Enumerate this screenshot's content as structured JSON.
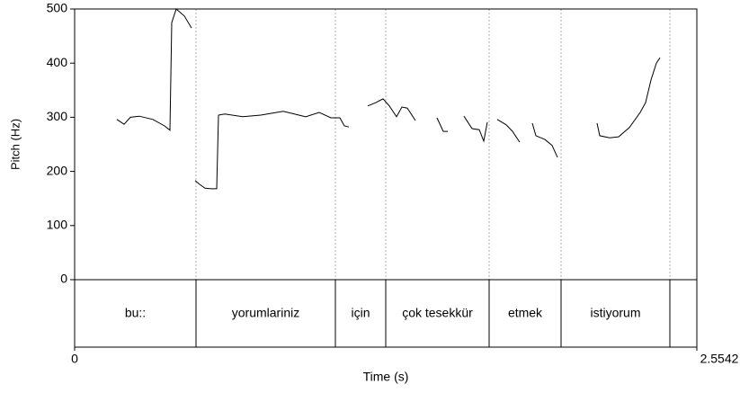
{
  "chart_data": {
    "type": "line",
    "xlabel": "Time (s)",
    "ylabel": "Pitch (Hz)",
    "xlim": [
      0,
      2.5542
    ],
    "xticks": [
      0,
      2.5542
    ],
    "ylim": [
      0,
      500
    ],
    "yticks": [
      0,
      100,
      200,
      300,
      400,
      500
    ],
    "color": "#000000",
    "grid": false,
    "x": [
      0.1735,
      0.203,
      0.2288,
      0.2657,
      0.3211,
      0.3691,
      0.3912,
      0.3986,
      0.4171,
      0.4503,
      0.4798,
      null,
      0.4946,
      0.5131,
      0.5352,
      0.5611,
      0.5832,
      0.5906,
      0.6164,
      0.6902,
      0.764,
      0.8563,
      0.9486,
      1.004,
      1.052,
      1.0889,
      1.1073,
      1.1258,
      null,
      1.2033,
      1.2365,
      1.2661,
      1.2919,
      1.3214,
      1.3436,
      1.3657,
      1.3989,
      null,
      1.4875,
      1.5133,
      1.5318,
      null,
      1.5982,
      1.6314,
      1.661,
      1.6794,
      1.6942,
      null,
      1.7348,
      1.7717,
      1.7975,
      1.8271,
      null,
      1.8788,
      1.8935,
      1.9304,
      1.9599,
      1.9821,
      null,
      2.1444,
      2.1555,
      2.1961,
      2.233,
      2.2773,
      2.3216,
      2.3437,
      2.3659,
      2.388,
      2.4028
    ],
    "values": [
      296,
      287,
      300,
      302,
      296,
      284,
      276,
      475,
      500,
      487,
      465,
      null,
      183,
      176,
      169,
      168,
      168,
      304,
      306,
      301,
      304,
      311,
      301,
      309,
      299,
      299,
      284,
      282,
      null,
      321,
      327,
      334,
      321,
      301,
      319,
      317,
      294,
      null,
      299,
      274,
      274,
      null,
      302,
      279,
      277,
      256,
      291,
      null,
      296,
      286,
      274,
      254,
      null,
      289,
      266,
      259,
      248,
      226,
      null,
      289,
      266,
      262,
      264,
      281,
      309,
      327,
      369,
      400,
      410
    ],
    "tier_boundaries": [
      0.4983,
      1.0704,
      1.2771,
      1.7016,
      1.9969,
      2.4435
    ],
    "tier_labels": [
      "bu::",
      "yorumlariniz",
      "için",
      "çok tesekkür",
      "etmek",
      "istiyorum",
      null
    ]
  }
}
